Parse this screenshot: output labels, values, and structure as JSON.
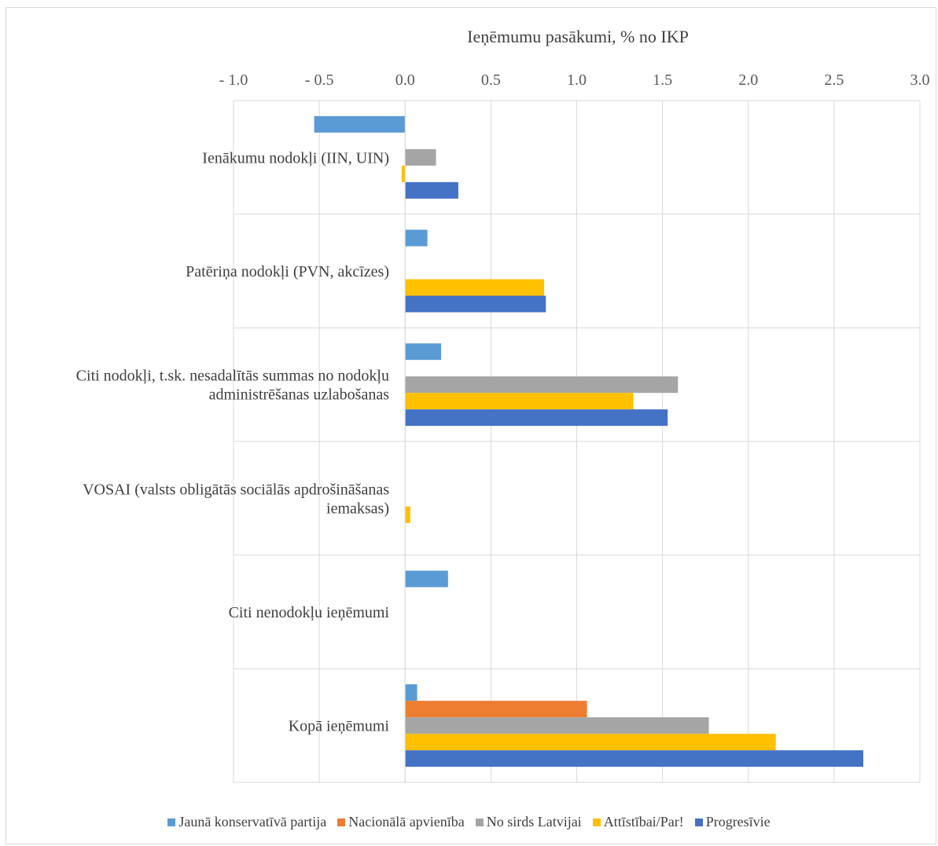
{
  "chart_data": {
    "type": "bar",
    "orientation": "horizontal",
    "title": "Ieņēmumu pasākumi, % no IKP",
    "xlim": [
      -1.0,
      3.0
    ],
    "xticks": [
      "- 1.0",
      "- 0.5",
      "0.0",
      "0.5",
      "1.0",
      "1.5",
      "2.0",
      "2.5",
      "3.0"
    ],
    "categories": [
      [
        "Ienākumu nodokļi (IIN, UIN)"
      ],
      [
        "Patēriņa nodokļi (PVN, akcīzes)"
      ],
      [
        "Citi nodokļi, t.sk. nesadalītās summas no nodokļu",
        "administrēšanas uzlabošanas"
      ],
      [
        "VOSAI (valsts obligātās sociālās apdrošināšanas",
        "iemaksas)"
      ],
      [
        "Citi nenodokļu ieņēmumi"
      ],
      [
        "Kopā ieņēmumi"
      ]
    ],
    "series": [
      {
        "name": "Jaunā konservatīvā partija",
        "color": "#5b9bd5",
        "values": [
          -0.53,
          0.13,
          0.21,
          0,
          0.25,
          0.07
        ]
      },
      {
        "name": "Nacionālā apvienība",
        "color": "#ed7d31",
        "values": [
          0,
          0,
          0,
          0,
          0,
          1.06
        ]
      },
      {
        "name": "No sirds Latvijai",
        "color": "#a5a5a5",
        "values": [
          0.18,
          0,
          1.59,
          0,
          0,
          1.77
        ]
      },
      {
        "name": "Attīstībai/Par!",
        "color": "#ffc000",
        "values": [
          -0.02,
          0.81,
          1.33,
          0.03,
          0,
          2.16
        ]
      },
      {
        "name": "Progresīvie",
        "color": "#4472c4",
        "values": [
          0.31,
          0.82,
          1.53,
          0,
          0,
          2.67
        ]
      }
    ],
    "grid": true,
    "legend_position": "bottom"
  }
}
